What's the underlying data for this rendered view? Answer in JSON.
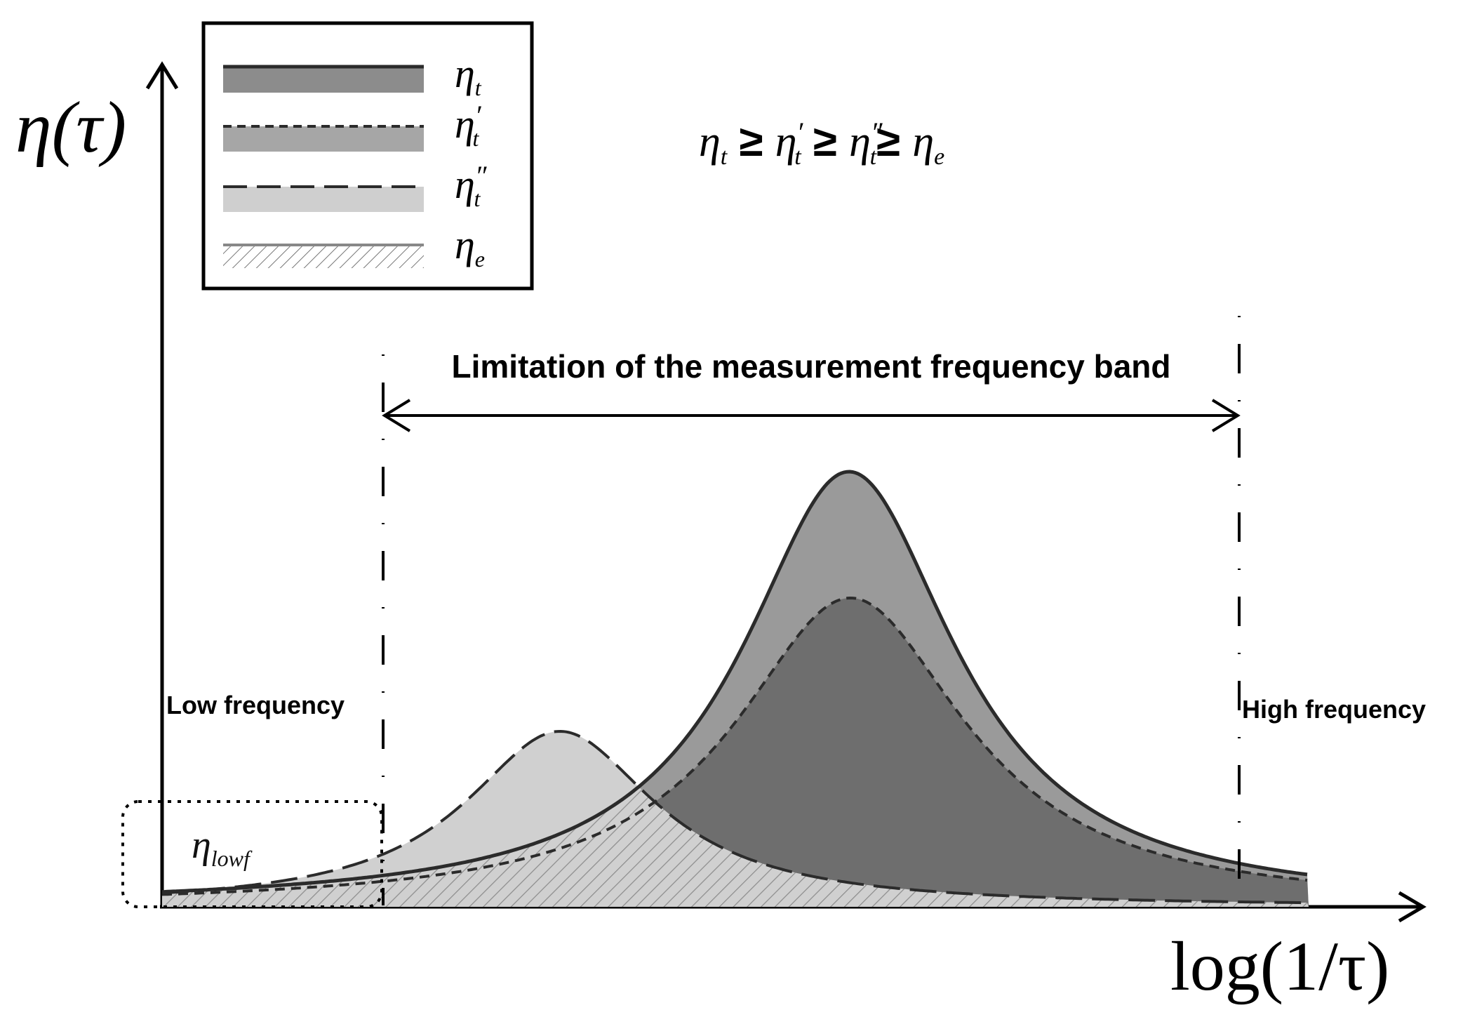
{
  "axes": {
    "y_label": "η(τ)",
    "x_label": "log(1/τ)"
  },
  "legend": {
    "items": [
      {
        "symbol": "η",
        "sub": "t",
        "prime": "",
        "line_style": "solid",
        "fill": "#8c8c8c"
      },
      {
        "symbol": "η",
        "sub": "t",
        "prime": "′",
        "line_style": "short-dash",
        "fill": "#a6a6a6"
      },
      {
        "symbol": "η",
        "sub": "t",
        "prime": "″",
        "line_style": "long-dash",
        "fill": "#cfcfcf"
      },
      {
        "symbol": "η",
        "sub": "e",
        "prime": "",
        "line_style": "solid-grey",
        "fill": "hatched"
      }
    ]
  },
  "relation": {
    "t1": "η",
    "s1": "t",
    "ge1": " ≥ ",
    "t2": "η",
    "p2": "′",
    "s2": "t",
    "ge2": " ≥ ",
    "t3": "η",
    "p3": "″",
    "s3": "t",
    "ge3": "≥ ",
    "t4": "η",
    "s4": "e"
  },
  "band": {
    "label": "Limitation of the measurement frequency band"
  },
  "annotations": {
    "low_frequency": "Low frequency",
    "high_frequency": "High frequency",
    "eta_lowf_symbol": "η",
    "eta_lowf_sub": "lowf"
  },
  "colors": {
    "eta_t_fill": "#9a9a9a",
    "eta_t_prime_fill": "#6e6e6e",
    "eta_t_dprime_fill": "#d0d0d0",
    "outline": "#2b2b2b"
  }
}
